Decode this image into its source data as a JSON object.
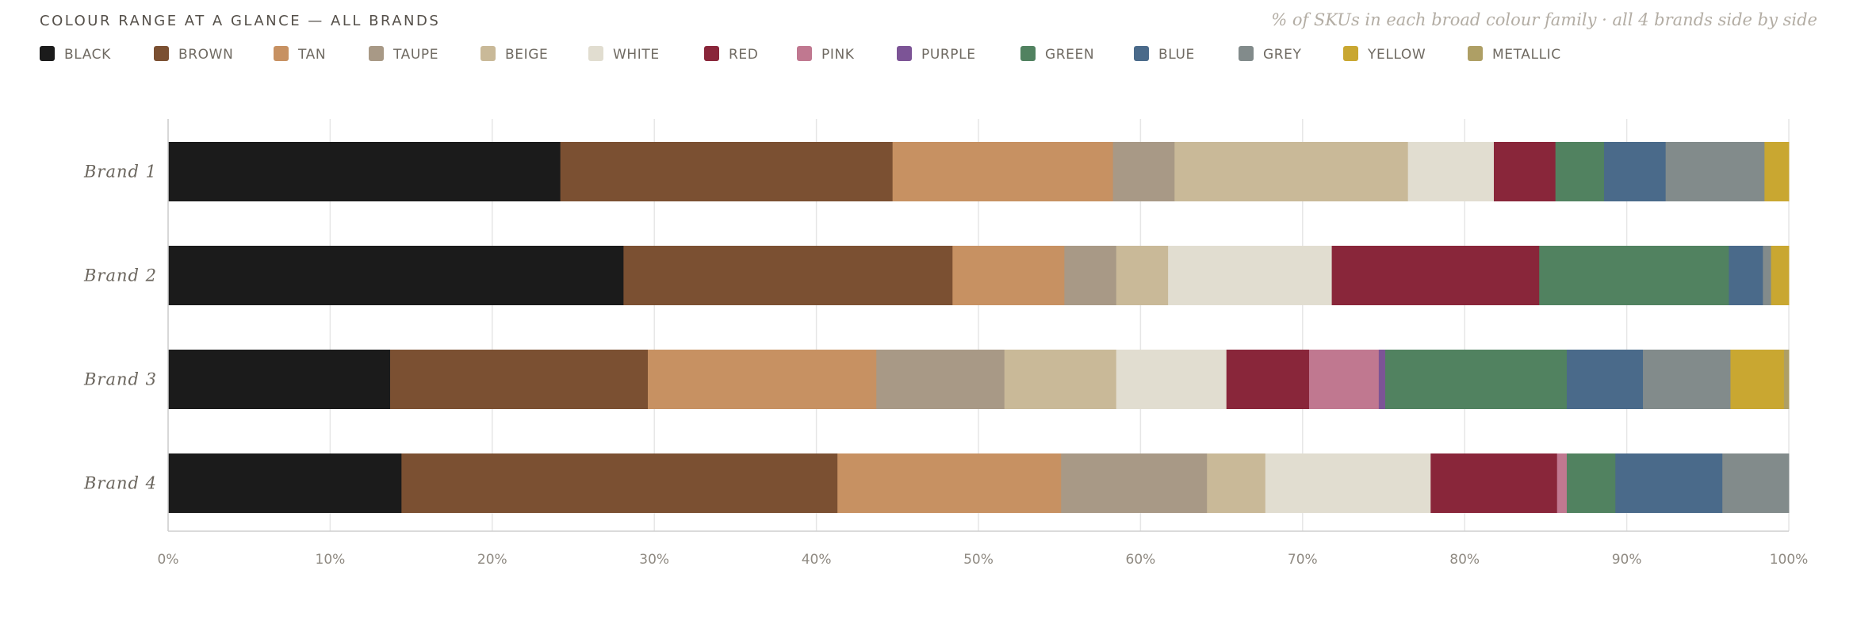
{
  "header": {
    "title": "COLOUR RANGE AT A GLANCE — ALL BRANDS",
    "subtitle": "% of SKUs in each broad colour family · all 4 brands side by side"
  },
  "chart_data": {
    "type": "bar",
    "orientation": "horizontal",
    "stacked": true,
    "title": "COLOUR RANGE AT A GLANCE — ALL BRANDS",
    "subtitle": "% of SKUs in each broad colour family · all 4 brands side by side",
    "xlabel": "",
    "ylabel": "",
    "xlim": [
      0,
      100
    ],
    "xticks": [
      "0%",
      "10%",
      "20%",
      "30%",
      "40%",
      "50%",
      "60%",
      "70%",
      "80%",
      "90%",
      "100%"
    ],
    "grid": "vertical",
    "legend_position": "top-left",
    "categories": [
      "Brand 1",
      "Brand 2",
      "Brand 3",
      "Brand 4"
    ],
    "series": [
      {
        "name": "BLACK",
        "color": "#1b1b1b",
        "values": [
          24.2,
          28.1,
          13.7,
          14.4
        ]
      },
      {
        "name": "BROWN",
        "color": "#7b5032",
        "values": [
          20.5,
          20.3,
          15.9,
          26.9
        ]
      },
      {
        "name": "TAN",
        "color": "#c79162",
        "values": [
          13.6,
          6.9,
          14.1,
          13.8
        ]
      },
      {
        "name": "TAUPE",
        "color": "#a89986",
        "values": [
          3.8,
          3.2,
          7.9,
          9.0
        ]
      },
      {
        "name": "BEIGE",
        "color": "#c9b998",
        "values": [
          14.4,
          3.2,
          6.9,
          3.6
        ]
      },
      {
        "name": "WHITE",
        "color": "#e1ddd0",
        "values": [
          5.3,
          10.1,
          6.8,
          10.2
        ]
      },
      {
        "name": "RED",
        "color": "#89263a",
        "values": [
          3.8,
          12.8,
          5.1,
          7.8
        ]
      },
      {
        "name": "PINK",
        "color": "#c07890",
        "values": [
          0,
          0,
          4.3,
          0.6
        ]
      },
      {
        "name": "PURPLE",
        "color": "#7c5496",
        "values": [
          0,
          0,
          0.4,
          0
        ]
      },
      {
        "name": "GREEN",
        "color": "#518260",
        "values": [
          3.0,
          11.7,
          11.2,
          3.0
        ]
      },
      {
        "name": "BLUE",
        "color": "#4a6a8a",
        "values": [
          3.8,
          2.1,
          4.7,
          6.6
        ]
      },
      {
        "name": "GREY",
        "color": "#828b8b",
        "values": [
          6.1,
          0.5,
          5.4,
          4.1
        ]
      },
      {
        "name": "YELLOW",
        "color": "#c9a731",
        "values": [
          1.5,
          1.1,
          3.3,
          0
        ]
      },
      {
        "name": "METALLIC",
        "color": "#ae9f65",
        "values": [
          0,
          0,
          0.3,
          0
        ]
      }
    ]
  }
}
